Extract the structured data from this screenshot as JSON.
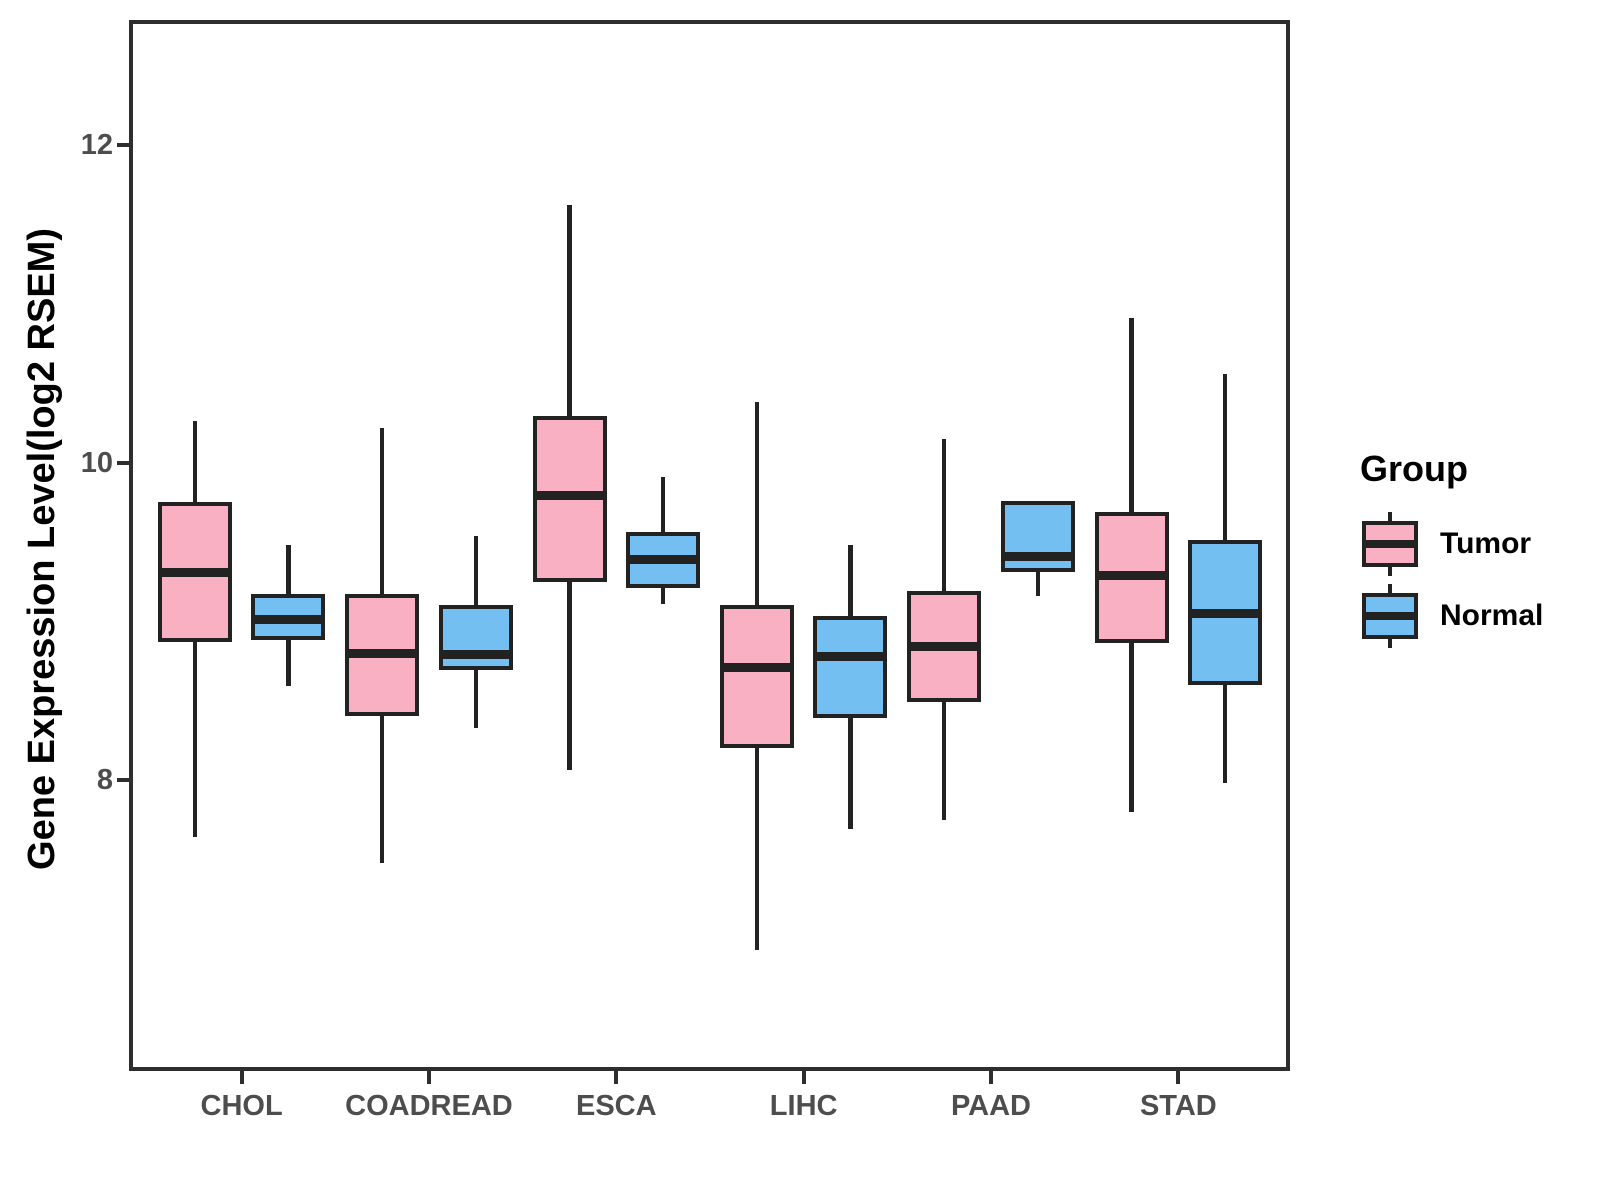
{
  "figure": {
    "y_axis": {
      "title": "Gene Expression Level(log2 RSEM)",
      "tick_labels": [
        "8",
        "10",
        "12"
      ],
      "tick_values": [
        8,
        10,
        12
      ]
    },
    "x_axis": {
      "categories": [
        "CHOL",
        "COADREAD",
        "ESCA",
        "LIHC",
        "PAAD",
        "STAD"
      ]
    },
    "legend": {
      "title": "Group",
      "items": [
        {
          "label": "Tumor",
          "color": "#FAB0C3"
        },
        {
          "label": "Normal",
          "color": "#74BFF2"
        }
      ]
    }
  },
  "colors": {
    "tumor_fill": "#FAB0C3",
    "normal_fill": "#74BFF2",
    "stroke": "#222222",
    "frame": "#2e2e2e",
    "axis_text": "#4d4d4d",
    "background": "#ffffff"
  },
  "chart_data": {
    "type": "boxplot",
    "title": "",
    "xlabel": "",
    "ylabel": "Gene Expression Level(log2 RSEM)",
    "ylim": [
      6.2,
      12.8
    ],
    "y_ticks": [
      8,
      10,
      12
    ],
    "grid": false,
    "legend_position": "right",
    "legend_title": "Group",
    "categories": [
      "CHOL",
      "COADREAD",
      "ESCA",
      "LIHC",
      "PAAD",
      "STAD"
    ],
    "series": [
      {
        "name": "Tumor",
        "color": "#FAB0C3",
        "boxes": [
          {
            "category": "CHOL",
            "whisker_low": 7.64,
            "q1": 8.87,
            "median": 9.31,
            "q3": 9.75,
            "whisker_high": 10.26
          },
          {
            "category": "COADREAD",
            "whisker_low": 7.48,
            "q1": 8.4,
            "median": 8.8,
            "q3": 9.17,
            "whisker_high": 10.22
          },
          {
            "category": "ESCA",
            "whisker_low": 8.06,
            "q1": 9.25,
            "median": 9.79,
            "q3": 10.29,
            "whisker_high": 11.62
          },
          {
            "category": "LIHC",
            "whisker_low": 6.93,
            "q1": 8.2,
            "median": 8.71,
            "q3": 9.1,
            "whisker_high": 10.38
          },
          {
            "category": "PAAD",
            "whisker_low": 7.75,
            "q1": 8.49,
            "median": 8.84,
            "q3": 9.19,
            "whisker_high": 10.15
          },
          {
            "category": "STAD",
            "whisker_low": 7.8,
            "q1": 8.86,
            "median": 9.29,
            "q3": 9.69,
            "whisker_high": 10.91
          }
        ]
      },
      {
        "name": "Normal",
        "color": "#74BFF2",
        "boxes": [
          {
            "category": "CHOL",
            "whisker_low": 8.59,
            "q1": 8.88,
            "median": 9.01,
            "q3": 9.17,
            "whisker_high": 9.48
          },
          {
            "category": "COADREAD",
            "whisker_low": 8.33,
            "q1": 8.69,
            "median": 8.79,
            "q3": 9.1,
            "whisker_high": 9.54
          },
          {
            "category": "ESCA",
            "whisker_low": 9.11,
            "q1": 9.21,
            "median": 9.39,
            "q3": 9.56,
            "whisker_high": 9.91
          },
          {
            "category": "LIHC",
            "whisker_low": 7.69,
            "q1": 8.39,
            "median": 8.78,
            "q3": 9.03,
            "whisker_high": 9.48
          },
          {
            "category": "PAAD",
            "whisker_low": 9.16,
            "q1": 9.31,
            "median": 9.41,
            "q3": 9.76,
            "whisker_high": 9.76
          },
          {
            "category": "STAD",
            "whisker_low": 7.98,
            "q1": 8.6,
            "median": 9.05,
            "q3": 9.51,
            "whisker_high": 10.56
          }
        ]
      }
    ]
  }
}
